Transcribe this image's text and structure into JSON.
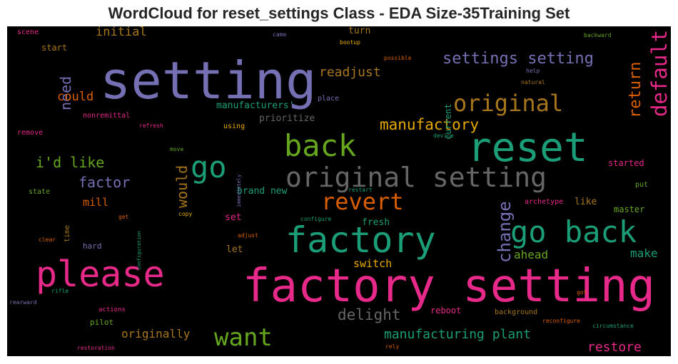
{
  "chart_data": {
    "type": "wordcloud",
    "title": "WordCloud for reset_settings Class - EDA Size-35Training Set",
    "background": "#000000",
    "palette": {
      "pink": "#e7298a",
      "teal": "#1b9e77",
      "orange": "#d95f02",
      "purple": "#7570b3",
      "green": "#66a61e",
      "gold": "#e6ab02",
      "brown": "#a6761d",
      "gray": "#666666"
    },
    "words": [
      {
        "text": "setting",
        "color": "#7570b3"
      },
      {
        "text": "factory setting",
        "color": "#e7298a"
      },
      {
        "text": "reset",
        "color": "#1b9e77"
      },
      {
        "text": "please",
        "color": "#e7298a"
      },
      {
        "text": "factory",
        "color": "#1b9e77"
      },
      {
        "text": "back",
        "color": "#66a61e"
      },
      {
        "text": "go back",
        "color": "#1b9e77"
      },
      {
        "text": "original setting",
        "color": "#666666"
      },
      {
        "text": "go",
        "color": "#1b9e77"
      },
      {
        "text": "want",
        "color": "#66a61e"
      },
      {
        "text": "original",
        "color": "#a6761d"
      },
      {
        "text": "revert",
        "color": "#d95f02"
      },
      {
        "text": "default",
        "color": "#e7298a"
      },
      {
        "text": "change",
        "color": "#7570b3"
      },
      {
        "text": "settings setting",
        "color": "#7570b3"
      },
      {
        "text": "return",
        "color": "#d95f02"
      },
      {
        "text": "manufactory",
        "color": "#e6ab02"
      },
      {
        "text": "delight",
        "color": "#666666"
      },
      {
        "text": "i'd like",
        "color": "#66a61e"
      },
      {
        "text": "would",
        "color": "#a6761d"
      },
      {
        "text": "factor",
        "color": "#7570b3"
      },
      {
        "text": "need",
        "color": "#7570b3"
      },
      {
        "text": "readjust",
        "color": "#a6761d"
      },
      {
        "text": "manufacturing plant",
        "color": "#1b9e77"
      },
      {
        "text": "restore",
        "color": "#e7298a"
      },
      {
        "text": "could",
        "color": "#d95f02"
      },
      {
        "text": "initial",
        "color": "#a6761d"
      },
      {
        "text": "originally",
        "color": "#a6761d"
      },
      {
        "text": "make",
        "color": "#1b9e77"
      },
      {
        "text": "ahead",
        "color": "#66a61e"
      },
      {
        "text": "switch",
        "color": "#e6ab02"
      },
      {
        "text": "mill",
        "color": "#d95f02"
      },
      {
        "text": "manufacturers'",
        "color": "#1b9e77"
      },
      {
        "text": "prioritize",
        "color": "#666666"
      },
      {
        "text": "brand new",
        "color": "#1b9e77"
      },
      {
        "text": "fresh",
        "color": "#1b9e77"
      },
      {
        "text": "set",
        "color": "#e7298a"
      },
      {
        "text": "let",
        "color": "#a6761d"
      },
      {
        "text": "like",
        "color": "#a6761d"
      },
      {
        "text": "master",
        "color": "#66a61e"
      },
      {
        "text": "started",
        "color": "#e7298a"
      },
      {
        "text": "reboot",
        "color": "#e7298a"
      },
      {
        "text": "current",
        "color": "#1b9e77"
      },
      {
        "text": "turn",
        "color": "#a6761d"
      },
      {
        "text": "start",
        "color": "#a6761d"
      },
      {
        "text": "pilot",
        "color": "#66a61e"
      },
      {
        "text": "hard",
        "color": "#7570b3"
      },
      {
        "text": "time",
        "color": "#a6761d"
      },
      {
        "text": "state",
        "color": "#66a61e"
      },
      {
        "text": "place",
        "color": "#7570b3"
      },
      {
        "text": "nonremittal",
        "color": "#e7298a"
      },
      {
        "text": "remove",
        "color": "#e7298a"
      },
      {
        "text": "using",
        "color": "#e6ab02"
      },
      {
        "text": "archetype",
        "color": "#e7298a"
      },
      {
        "text": "background",
        "color": "#a6761d"
      },
      {
        "text": "scene",
        "color": "#e7298a"
      },
      {
        "text": "put",
        "color": "#66a61e"
      },
      {
        "text": "actions",
        "color": "#e7298a"
      },
      {
        "text": "came",
        "color": "#7570b3"
      },
      {
        "text": "bootup",
        "color": "#e6ab02"
      },
      {
        "text": "possible",
        "color": "#d95f02"
      },
      {
        "text": "backward",
        "color": "#66a61e"
      },
      {
        "text": "help",
        "color": "#7570b3"
      },
      {
        "text": "natural",
        "color": "#a6761d"
      },
      {
        "text": "refresh",
        "color": "#e7298a"
      },
      {
        "text": "device",
        "color": "#1b9e77"
      },
      {
        "text": "move",
        "color": "#66a61e"
      },
      {
        "text": "immediately",
        "color": "#7570b3"
      },
      {
        "text": "restart",
        "color": "#1b9e77"
      },
      {
        "text": "configuration",
        "color": "#1b9e77"
      },
      {
        "text": "get",
        "color": "#d95f02"
      },
      {
        "text": "copy",
        "color": "#e6ab02"
      },
      {
        "text": "configure",
        "color": "#1b9e77"
      },
      {
        "text": "adjust",
        "color": "#d95f02"
      },
      {
        "text": "clear",
        "color": "#d95f02"
      },
      {
        "text": "rifle",
        "color": "#1b9e77"
      },
      {
        "text": "rearward",
        "color": "#7570b3"
      },
      {
        "text": "restoration",
        "color": "#e7298a"
      },
      {
        "text": "rely",
        "color": "#d95f02"
      },
      {
        "text": "reconfigure",
        "color": "#d95f02"
      },
      {
        "text": "circumstance",
        "color": "#1b9e77"
      },
      {
        "text": "got",
        "color": "#d95f02"
      }
    ]
  }
}
